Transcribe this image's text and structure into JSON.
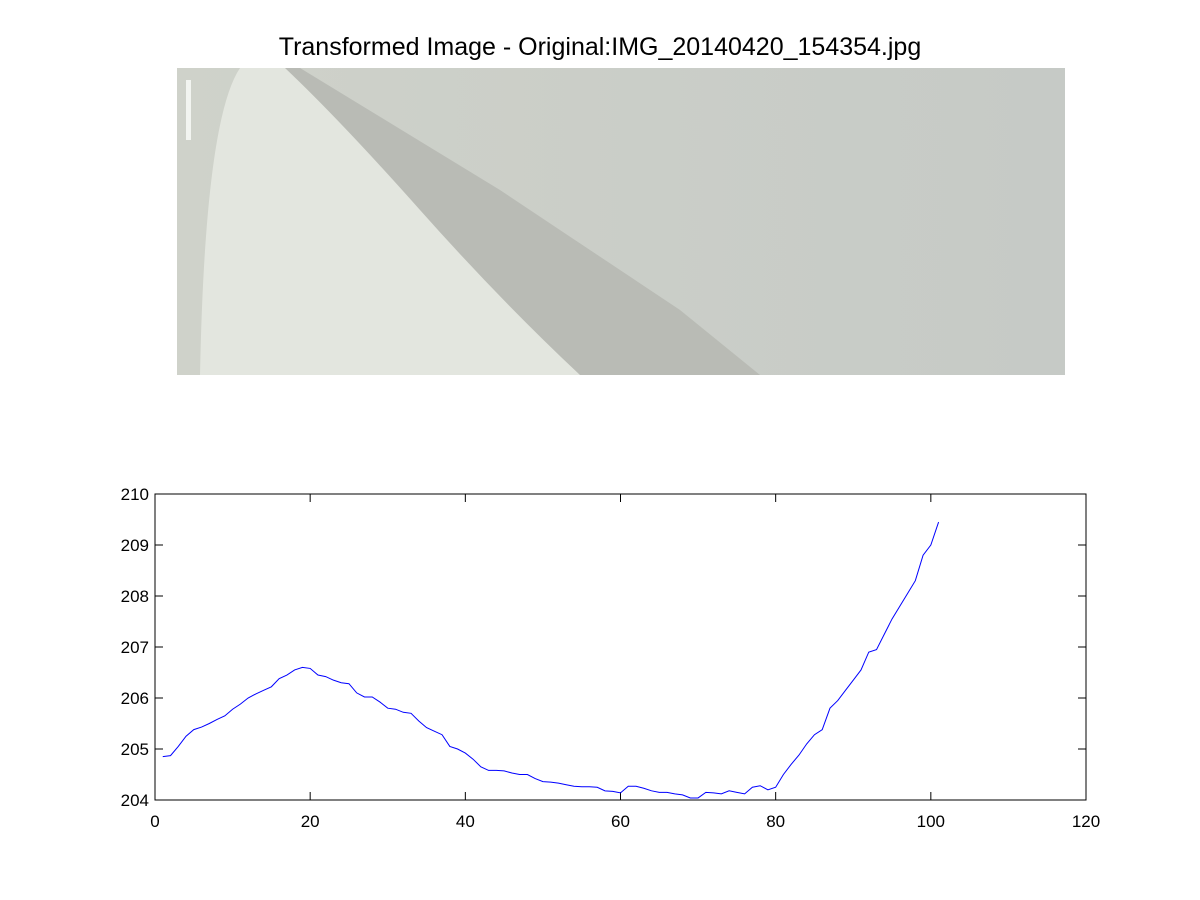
{
  "chart_data": [
    {
      "type": "image",
      "title": "Transformed Image - Original:IMG_20140420_154354.jpg"
    },
    {
      "type": "line",
      "x": [
        1,
        2,
        3,
        4,
        5,
        6,
        7,
        8,
        9,
        10,
        11,
        12,
        13,
        14,
        15,
        16,
        17,
        18,
        19,
        20,
        21,
        22,
        23,
        24,
        25,
        26,
        27,
        28,
        29,
        30,
        31,
        32,
        33,
        34,
        35,
        36,
        37,
        38,
        39,
        40,
        41,
        42,
        43,
        44,
        45,
        46,
        47,
        48,
        49,
        50,
        51,
        52,
        53,
        54,
        55,
        56,
        57,
        58,
        59,
        60,
        61,
        62,
        63,
        64,
        65,
        66,
        67,
        68,
        69,
        70,
        71,
        72,
        73,
        74,
        75,
        76,
        77,
        78,
        79,
        80,
        81,
        82,
        83,
        84,
        85,
        86,
        87,
        88,
        89,
        90,
        91,
        92,
        93,
        94,
        95,
        96,
        97,
        98,
        99,
        100,
        101
      ],
      "values": [
        204.85,
        204.87,
        205.05,
        205.25,
        205.38,
        205.43,
        205.5,
        205.58,
        205.65,
        205.78,
        205.88,
        206.0,
        206.08,
        206.15,
        206.22,
        206.38,
        206.45,
        206.55,
        206.6,
        206.58,
        206.45,
        206.42,
        206.35,
        206.3,
        206.28,
        206.1,
        206.02,
        206.02,
        205.92,
        205.8,
        205.78,
        205.72,
        205.7,
        205.55,
        205.42,
        205.35,
        205.28,
        205.05,
        205.0,
        204.92,
        204.8,
        204.65,
        204.58,
        204.58,
        204.57,
        204.53,
        204.5,
        204.5,
        204.42,
        204.36,
        204.35,
        204.33,
        204.3,
        204.27,
        204.26,
        204.26,
        204.25,
        204.18,
        204.17,
        204.14,
        204.27,
        204.27,
        204.23,
        204.18,
        204.15,
        204.15,
        204.12,
        204.1,
        204.04,
        204.04,
        204.15,
        204.14,
        204.12,
        204.18,
        204.15,
        204.12,
        204.25,
        204.28,
        204.2,
        204.25,
        204.5,
        204.7,
        204.88,
        205.1,
        205.28,
        205.38,
        205.8,
        205.95,
        206.15,
        206.35,
        206.55,
        206.9,
        206.95,
        207.25,
        207.55,
        207.8,
        208.05,
        208.3,
        208.8,
        209.0,
        209.45
      ],
      "color": "#0000ff",
      "xlim": [
        0,
        120
      ],
      "xticks": [
        0,
        20,
        40,
        60,
        80,
        100,
        120
      ],
      "ylim": [
        204,
        210
      ],
      "yticks": [
        204,
        205,
        206,
        207,
        208,
        209,
        210
      ]
    }
  ]
}
